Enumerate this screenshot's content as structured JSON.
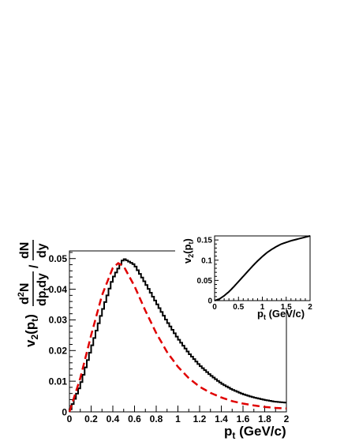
{
  "chart_data": [
    {
      "type": "line",
      "title": "",
      "xlabel": "p_t (GeV/c)",
      "ylabel": "v_2(p_t) d^2N/dp_t dy / dN/dy",
      "xlim": [
        0,
        2
      ],
      "ylim": [
        0,
        0.0525
      ],
      "x_ticks": [
        0,
        0.2,
        0.4,
        0.6,
        0.8,
        1,
        1.2,
        1.4,
        1.6,
        1.8,
        2
      ],
      "x_tick_labels": [
        "0",
        "0.2",
        "0.4",
        "0.6",
        "0.8",
        "1",
        "1.2",
        "1.4",
        "1.6",
        "1.8",
        "2"
      ],
      "y_ticks": [
        0,
        0.01,
        0.02,
        0.03,
        0.04,
        0.05
      ],
      "y_tick_labels": [
        "0",
        "0.01",
        "0.02",
        "0.03",
        "0.04",
        "0.05"
      ],
      "grid": false,
      "series": [
        {
          "style": "histogram",
          "color": "#000000",
          "x": [
            0,
            0.1,
            0.2,
            0.3,
            0.4,
            0.5,
            0.6,
            0.7,
            0.8,
            0.9,
            1.0,
            1.1,
            1.2,
            1.3,
            1.4,
            1.5,
            1.6,
            1.7,
            1.8,
            1.9,
            2.0
          ],
          "values": [
            0,
            0.0085,
            0.0205,
            0.0325,
            0.0435,
            0.05,
            0.048,
            0.042,
            0.0357,
            0.0295,
            0.024,
            0.0192,
            0.0152,
            0.012,
            0.0093,
            0.0073,
            0.0058,
            0.0047,
            0.0039,
            0.0033,
            0.003
          ]
        },
        {
          "style": "dashed",
          "color": "#e00000",
          "x": [
            0,
            0.1,
            0.2,
            0.3,
            0.4,
            0.45,
            0.5,
            0.6,
            0.7,
            0.8,
            0.9,
            1.0,
            1.1,
            1.2,
            1.3,
            1.4,
            1.5,
            1.6,
            1.7,
            1.8,
            1.9,
            2.0
          ],
          "values": [
            0,
            0.011,
            0.025,
            0.038,
            0.047,
            0.0485,
            0.0475,
            0.041,
            0.033,
            0.0257,
            0.0195,
            0.0147,
            0.011,
            0.0082,
            0.0062,
            0.0047,
            0.0035,
            0.0027,
            0.0021,
            0.0016,
            0.0013,
            0.0011
          ]
        }
      ]
    },
    {
      "type": "line",
      "title": "",
      "xlabel": "p_t (GeV/c)",
      "ylabel": "v_2(p_t)",
      "xlim": [
        0,
        2
      ],
      "ylim": [
        0,
        0.16
      ],
      "x_ticks": [
        0,
        0.5,
        1,
        1.5,
        2
      ],
      "x_tick_labels": [
        "0",
        "0.5",
        "1",
        "1.5",
        "2"
      ],
      "y_ticks": [
        0,
        0.05,
        0.1,
        0.15
      ],
      "y_tick_labels": [
        "0",
        "0.05",
        "0.1",
        "0.15"
      ],
      "grid": false,
      "series": [
        {
          "style": "solid",
          "color": "#000000",
          "x": [
            0,
            0.1,
            0.2,
            0.3,
            0.4,
            0.5,
            0.6,
            0.7,
            0.8,
            0.9,
            1.0,
            1.1,
            1.2,
            1.3,
            1.4,
            1.5,
            1.6,
            1.7,
            1.8,
            1.9,
            2.0
          ],
          "values": [
            0,
            0.004,
            0.012,
            0.022,
            0.034,
            0.047,
            0.06,
            0.073,
            0.086,
            0.098,
            0.109,
            0.119,
            0.127,
            0.134,
            0.14,
            0.144,
            0.148,
            0.151,
            0.154,
            0.157,
            0.16
          ]
        }
      ]
    }
  ]
}
